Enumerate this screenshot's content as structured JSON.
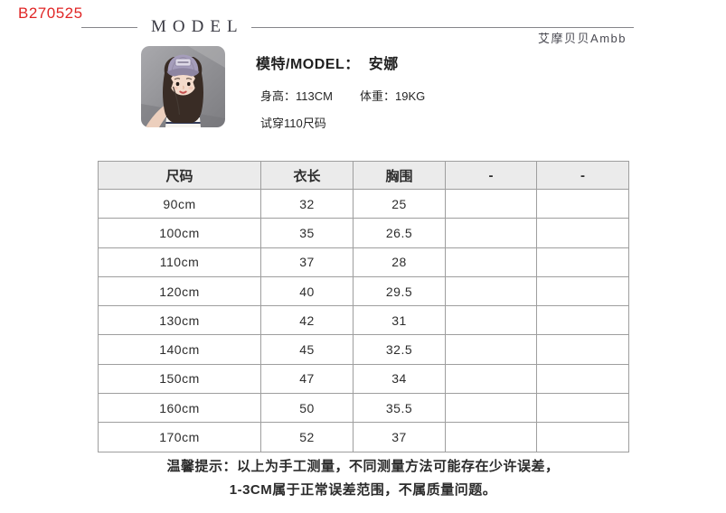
{
  "code": "B270525",
  "header": {
    "title": "MODEL",
    "brand": "艾摩贝贝Ambb"
  },
  "model": {
    "photo_icon": "child-model-photo",
    "label": "模特/MODEL：",
    "name": "安娜",
    "height_label": "身高：",
    "height": "113CM",
    "weight_label": "体重：",
    "weight": "19KG",
    "fit_note": "试穿110尺码"
  },
  "table": {
    "headers": [
      "尺码",
      "衣长",
      "胸围",
      "-",
      "-"
    ],
    "rows": [
      [
        "90cm",
        "32",
        "25",
        "",
        ""
      ],
      [
        "100cm",
        "35",
        "26.5",
        "",
        ""
      ],
      [
        "110cm",
        "37",
        "28",
        "",
        ""
      ],
      [
        "120cm",
        "40",
        "29.5",
        "",
        ""
      ],
      [
        "130cm",
        "42",
        "31",
        "",
        ""
      ],
      [
        "140cm",
        "45",
        "32.5",
        "",
        ""
      ],
      [
        "150cm",
        "47",
        "34",
        "",
        ""
      ],
      [
        "160cm",
        "50",
        "35.5",
        "",
        ""
      ],
      [
        "170cm",
        "52",
        "37",
        "",
        ""
      ]
    ]
  },
  "footer": {
    "line1": "温馨提示：以上为手工测量，不同测量方法可能存在少许误差，",
    "line2": "1-3CM属于正常误差范围，不属质量问题。"
  },
  "colors": {
    "code_red": "#e02525",
    "header_fill": "#ebebeb",
    "table_border": "#9e9e9e",
    "rule_gray": "#85858a",
    "text_dark": "#2d2d2d"
  }
}
